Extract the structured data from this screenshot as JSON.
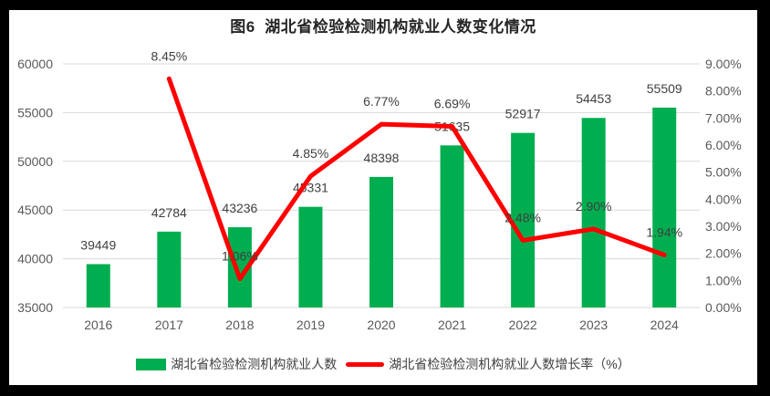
{
  "chart_data": {
    "type": "combo-bar-line",
    "title": "图6  湖北省检验检测机构就业人数变化情况",
    "categories": [
      "2016",
      "2017",
      "2018",
      "2019",
      "2020",
      "2021",
      "2022",
      "2023",
      "2024"
    ],
    "series": [
      {
        "name": "湖北省检验检测机构就业人数",
        "type": "bar",
        "axis": "left",
        "color": "#00AE50",
        "values": [
          39449,
          42784,
          43236,
          45331,
          48398,
          51635,
          52917,
          54453,
          55509
        ],
        "labels": [
          "39449",
          "42784",
          "43236",
          "45331",
          "48398",
          "51635",
          "52917",
          "54453",
          "55509"
        ]
      },
      {
        "name": "湖北省检验检测机构就业人数增长率（%）",
        "type": "line",
        "axis": "right",
        "color": "#FF0000",
        "values": [
          null,
          8.45,
          1.06,
          4.85,
          6.77,
          6.69,
          2.48,
          2.9,
          1.94
        ],
        "labels": [
          "",
          "8.45%",
          "1.06%",
          "4.85%",
          "6.77%",
          "6.69%",
          "2.48%",
          "2.90%",
          "1.94%"
        ]
      }
    ],
    "left_axis": {
      "min": 35000,
      "max": 60000,
      "step": 5000,
      "tick_labels": [
        "60000",
        "55000",
        "50000",
        "45000",
        "40000",
        "35000"
      ]
    },
    "right_axis": {
      "min": 0,
      "max": 9,
      "step": 1,
      "tick_labels": [
        "9.00%",
        "8.00%",
        "7.00%",
        "6.00%",
        "5.00%",
        "4.00%",
        "3.00%",
        "2.00%",
        "1.00%",
        "0.00%"
      ]
    },
    "gridlines": true,
    "gridline_color": "#D9D9D9",
    "axis_text_color": "#595959",
    "data_label_color": "#404040",
    "legend_position": "bottom"
  }
}
